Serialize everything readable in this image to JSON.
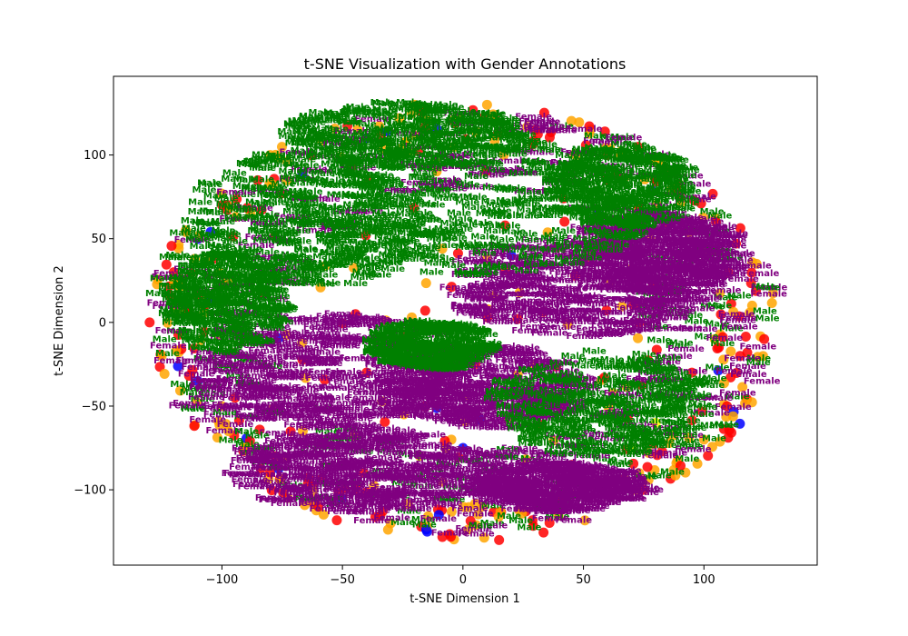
{
  "chart_data": {
    "type": "scatter",
    "title": "t-SNE Visualization with Gender Annotations",
    "xlabel": "t-SNE Dimension 1",
    "ylabel": "t-SNE Dimension 2",
    "xlim": [
      -145,
      147
    ],
    "ylim": [
      -145,
      147
    ],
    "xticks": [
      -100,
      -50,
      0,
      50,
      100
    ],
    "yticks": [
      -100,
      -50,
      0,
      50,
      100
    ],
    "xtick_labels": [
      "−100",
      "−50",
      "0",
      "50",
      "100"
    ],
    "ytick_labels": [
      "−100",
      "−50",
      "0",
      "50",
      "100"
    ],
    "grid": false,
    "legend": "none",
    "point_colors": [
      "#ff0000",
      "#ffa500",
      "#0000ff",
      "#ffff00"
    ],
    "annotation_labels": [
      "Male",
      "Female"
    ],
    "annotation_colors": {
      "Male": "#008000",
      "Female": "#800080"
    },
    "points": [
      {
        "x": -110,
        "y": -35,
        "c": 2
      },
      {
        "x": -10,
        "y": -115,
        "c": 2
      },
      {
        "x": 15,
        "y": -130,
        "c": 0
      },
      {
        "x": -120,
        "y": 30,
        "c": 0
      },
      {
        "x": -115,
        "y": 55,
        "c": 1
      },
      {
        "x": 110,
        "y": 30,
        "c": 0
      },
      {
        "x": 120,
        "y": 10,
        "c": 1
      },
      {
        "x": 125,
        "y": -10,
        "c": 0
      },
      {
        "x": 100,
        "y": -70,
        "c": 1
      },
      {
        "x": 90,
        "y": 75,
        "c": 0
      },
      {
        "x": -80,
        "y": 100,
        "c": 1
      },
      {
        "x": -60,
        "y": -110,
        "c": 0
      },
      {
        "x": 40,
        "y": -105,
        "c": 0
      },
      {
        "x": 70,
        "y": -75,
        "c": 3
      },
      {
        "x": 80,
        "y": -60,
        "c": 3
      },
      {
        "x": 55,
        "y": -95,
        "c": 3
      },
      {
        "x": -20,
        "y": 130,
        "c": 1
      },
      {
        "x": 10,
        "y": 130,
        "c": 1
      },
      {
        "x": -130,
        "y": 0,
        "c": 0
      },
      {
        "x": -125,
        "y": -20,
        "c": 1
      },
      {
        "x": 105,
        "y": 60,
        "c": 0
      },
      {
        "x": 60,
        "y": 100,
        "c": 0
      },
      {
        "x": -40,
        "y": 110,
        "c": 2
      },
      {
        "x": 30,
        "y": 115,
        "c": 0
      },
      {
        "x": -90,
        "y": -75,
        "c": 1
      },
      {
        "x": 95,
        "y": -30,
        "c": 0
      },
      {
        "x": -100,
        "y": 70,
        "c": 0
      },
      {
        "x": -5,
        "y": -128,
        "c": 0
      },
      {
        "x": 75,
        "y": -100,
        "c": 0
      },
      {
        "x": -30,
        "y": -120,
        "c": 1
      },
      {
        "x": 0,
        "y": -75,
        "c": 2
      },
      {
        "x": -40,
        "y": -30,
        "c": 0
      },
      {
        "x": 20,
        "y": 40,
        "c": 2
      },
      {
        "x": 115,
        "y": -20,
        "c": 0
      },
      {
        "x": -105,
        "y": 15,
        "c": 2
      },
      {
        "x": -95,
        "y": -5,
        "c": 0
      }
    ],
    "male_clusters": [
      {
        "x": -60,
        "y": 60,
        "rx": 50,
        "ry": 42
      },
      {
        "x": 5,
        "y": 65,
        "rx": 75,
        "ry": 40
      },
      {
        "x": 60,
        "y": -50,
        "rx": 45,
        "ry": 32
      },
      {
        "x": -95,
        "y": 10,
        "rx": 25,
        "ry": 30
      },
      {
        "x": -20,
        "y": 110,
        "rx": 50,
        "ry": 20
      },
      {
        "x": 70,
        "y": 80,
        "rx": 30,
        "ry": 25
      },
      {
        "x": -10,
        "y": -15,
        "rx": 25,
        "ry": 15
      }
    ],
    "female_clusters": [
      {
        "x": -55,
        "y": -30,
        "rx": 55,
        "ry": 35
      },
      {
        "x": 50,
        "y": 20,
        "rx": 55,
        "ry": 30
      },
      {
        "x": -40,
        "y": -90,
        "rx": 55,
        "ry": 25
      },
      {
        "x": 80,
        "y": 40,
        "rx": 35,
        "ry": 25
      },
      {
        "x": 10,
        "y": -40,
        "rx": 40,
        "ry": 25
      },
      {
        "x": 40,
        "y": -100,
        "rx": 35,
        "ry": 15
      }
    ]
  }
}
